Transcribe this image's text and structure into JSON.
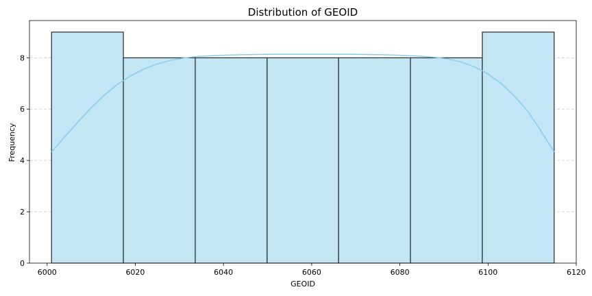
{
  "chart_data": {
    "type": "bar",
    "title": "Distribution of GEOID",
    "xlabel": "GEOID",
    "ylabel": "Frequency",
    "xlim": [
      5996,
      6120
    ],
    "ylim": [
      0,
      9.45
    ],
    "x_ticks": [
      6000,
      6020,
      6040,
      6060,
      6080,
      6100,
      6120
    ],
    "y_ticks": [
      0,
      2,
      4,
      6,
      8
    ],
    "grid": "horizontal, dashed",
    "bins": [
      {
        "start": 6001.0,
        "end": 6017.3,
        "count": 9
      },
      {
        "start": 6017.3,
        "end": 6033.6,
        "count": 8
      },
      {
        "start": 6033.6,
        "end": 6049.9,
        "count": 8
      },
      {
        "start": 6049.9,
        "end": 6066.1,
        "count": 8
      },
      {
        "start": 6066.1,
        "end": 6082.4,
        "count": 8
      },
      {
        "start": 6082.4,
        "end": 6098.7,
        "count": 8
      },
      {
        "start": 6098.7,
        "end": 6115.0,
        "count": 9
      }
    ],
    "kde": {
      "x": [
        6001,
        6004,
        6007,
        6010,
        6013,
        6016,
        6019,
        6022,
        6025,
        6028,
        6031,
        6034,
        6037,
        6040,
        6044,
        6048,
        6052,
        6056,
        6060,
        6064,
        6068,
        6072,
        6076,
        6080,
        6084,
        6088,
        6091,
        6094,
        6097,
        6100,
        6103,
        6106,
        6109,
        6112,
        6115
      ],
      "y": [
        4.33,
        4.92,
        5.5,
        6.05,
        6.55,
        6.97,
        7.3,
        7.57,
        7.76,
        7.9,
        7.99,
        8.05,
        8.08,
        8.1,
        8.12,
        8.13,
        8.14,
        8.14,
        8.14,
        8.14,
        8.14,
        8.13,
        8.12,
        8.1,
        8.07,
        8.02,
        7.95,
        7.83,
        7.64,
        7.37,
        6.99,
        6.5,
        5.92,
        5.15,
        4.33
      ]
    },
    "colors": {
      "bar_fill": "#c3e5f4",
      "bar_edge": "#000000",
      "kde_line": "#87ceeb",
      "grid": "#c8c8c8",
      "axis": "#000000"
    }
  }
}
